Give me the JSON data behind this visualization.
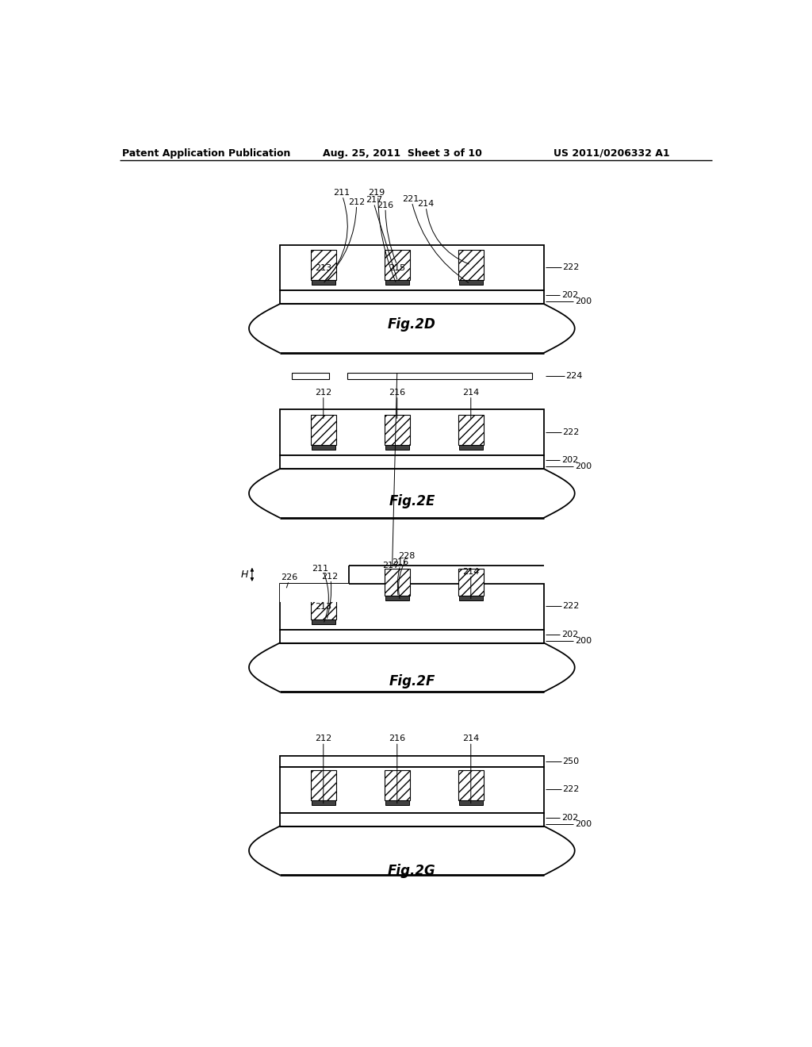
{
  "title_left": "Patent Application Publication",
  "title_mid": "Aug. 25, 2011  Sheet 3 of 10",
  "title_right": "US 2011/0206332 A1",
  "background_color": "#ffffff",
  "line_color": "#000000"
}
